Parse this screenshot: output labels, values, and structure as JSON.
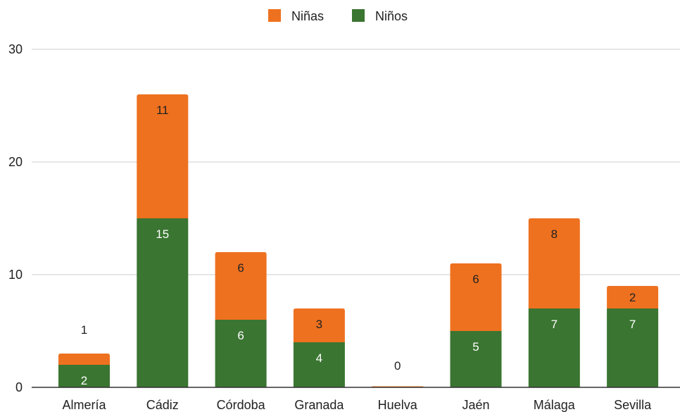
{
  "chart_data": {
    "type": "bar",
    "stacked": true,
    "title": "",
    "xlabel": "",
    "ylabel": "",
    "categories": [
      "Almería",
      "Cádiz",
      "Córdoba",
      "Granada",
      "Huelva",
      "Jaén",
      "Málaga",
      "Sevilla"
    ],
    "series": [
      {
        "name": "Niños",
        "color": "#3a7531",
        "label_color": "#ffffff",
        "values": [
          2,
          15,
          6,
          4,
          0,
          5,
          7,
          7
        ]
      },
      {
        "name": "Niñas",
        "color": "#ee711f",
        "label_color": "#222222",
        "values": [
          1,
          11,
          6,
          3,
          0,
          6,
          8,
          2
        ]
      }
    ],
    "legend_order": [
      "Niñas",
      "Niños"
    ],
    "legend_position": "top",
    "ylim": [
      0,
      30
    ],
    "yticks": [
      0,
      10,
      20,
      30
    ],
    "grid": true
  }
}
